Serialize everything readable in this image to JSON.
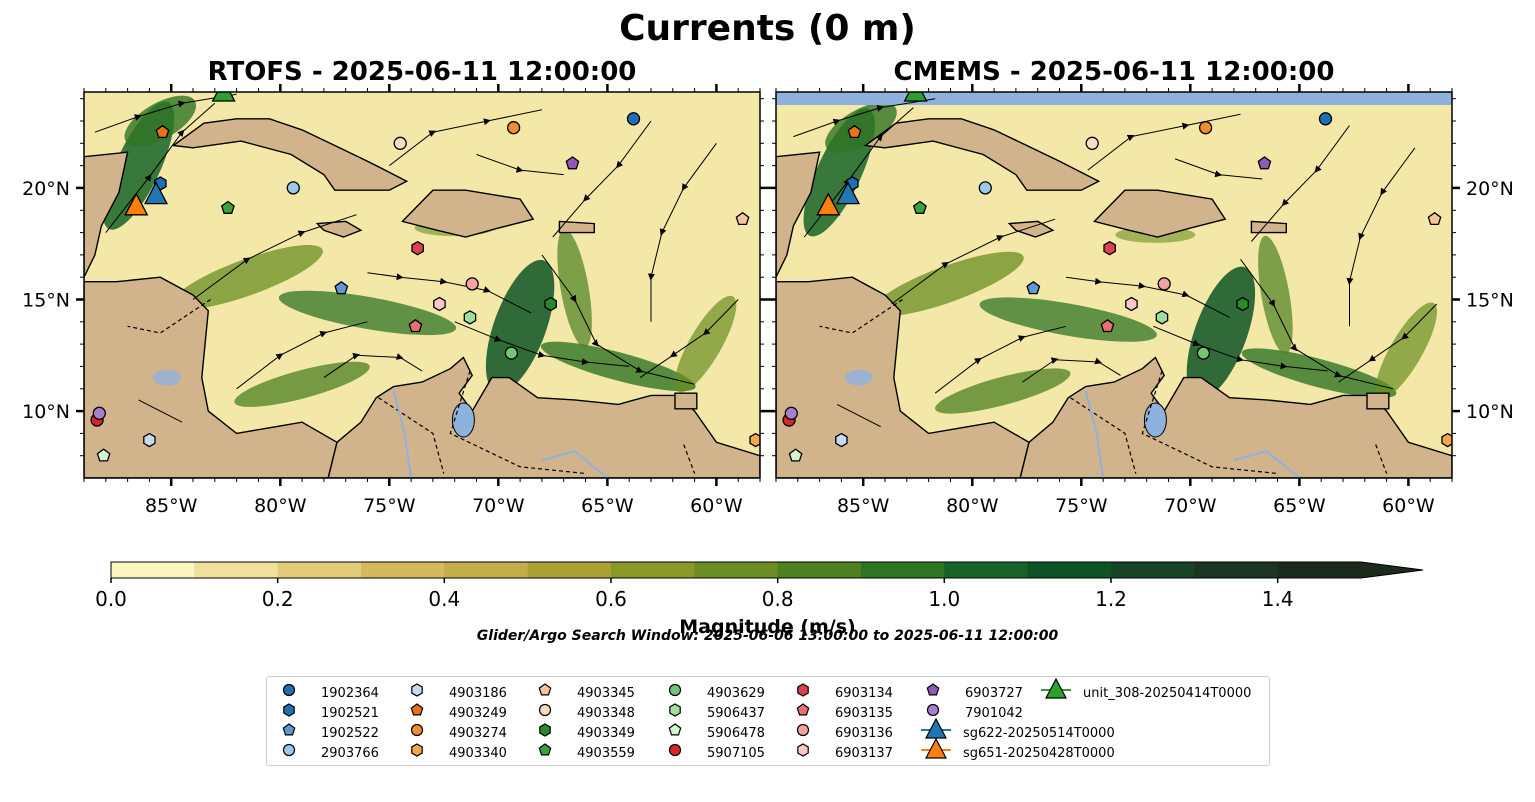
{
  "figure": {
    "title": "Currents (0 m)",
    "panels": [
      {
        "title": "RTOFS - 2025-06-11 12:00:00"
      },
      {
        "title": "CMEMS - 2025-06-11 12:00:00"
      }
    ],
    "colorbar_title": "Magnitude (m/s)",
    "search_window": "Glider/Argo Search Window: 2025-06-06 13:00:00 to 2025-06-11 12:00:00"
  },
  "chart_data": {
    "type": "map",
    "lon_range": [
      -89.0,
      -58.0
    ],
    "lat_range": [
      7.0,
      24.3
    ],
    "lon_ticks": [
      {
        "value": -85,
        "label": "85°W"
      },
      {
        "value": -80,
        "label": "80°W"
      },
      {
        "value": -75,
        "label": "75°W"
      },
      {
        "value": -70,
        "label": "70°W"
      },
      {
        "value": -65,
        "label": "65°W"
      },
      {
        "value": -60,
        "label": "60°W"
      }
    ],
    "lat_ticks": [
      {
        "value": 20,
        "label": "20°N"
      },
      {
        "value": 15,
        "label": "15°N"
      },
      {
        "value": 10,
        "label": "10°N"
      }
    ],
    "colorbar": {
      "vmin": 0.0,
      "vmax": 1.5,
      "extend": "max",
      "ticks": [
        {
          "value": 0.0,
          "label": "0.0"
        },
        {
          "value": 0.2,
          "label": "0.2"
        },
        {
          "value": 0.4,
          "label": "0.4"
        },
        {
          "value": 0.6,
          "label": "0.6"
        },
        {
          "value": 0.8,
          "label": "0.8"
        },
        {
          "value": 1.0,
          "label": "1.0"
        },
        {
          "value": 1.2,
          "label": "1.2"
        },
        {
          "value": 1.4,
          "label": "1.4"
        }
      ],
      "colors": [
        "#fbf6bf",
        "#efe09a",
        "#e2cc78",
        "#d6b95a",
        "#c5ad48",
        "#a9a233",
        "#8a9926",
        "#6a8e21",
        "#4c8021",
        "#2f7424",
        "#166427",
        "#0d5326",
        "#174427",
        "#1c3522",
        "#1b2a1a"
      ]
    },
    "land_color": "#d2b48c",
    "lake_color": "#8fb1de",
    "platforms": [
      {
        "name": "1902364",
        "lon": -63.8,
        "lat": 23.1,
        "marker": "circle",
        "color": "#1f6fb4"
      },
      {
        "name": "1902521",
        "lon": -85.5,
        "lat": 20.2,
        "marker": "hexagon",
        "color": "#1f6fb4"
      },
      {
        "name": "1902522",
        "lon": -77.2,
        "lat": 15.5,
        "marker": "pentagon",
        "color": "#5b9bd5"
      },
      {
        "name": "2903766",
        "lon": -79.4,
        "lat": 20.0,
        "marker": "circle",
        "color": "#9ec8e8"
      },
      {
        "name": "4903186",
        "lon": -86.0,
        "lat": 8.7,
        "marker": "hexagon",
        "color": "#c6dbef"
      },
      {
        "name": "4903249",
        "lon": -85.4,
        "lat": 22.5,
        "marker": "pentagon",
        "color": "#e8711a"
      },
      {
        "name": "4903274",
        "lon": -69.3,
        "lat": 22.7,
        "marker": "circle",
        "color": "#f08c32"
      },
      {
        "name": "4903340",
        "lon": -58.2,
        "lat": 8.7,
        "marker": "hexagon",
        "color": "#f4a64a"
      },
      {
        "name": "4903345",
        "lon": -58.8,
        "lat": 18.6,
        "marker": "pentagon",
        "color": "#f6c49a"
      },
      {
        "name": "4903348",
        "lon": -74.5,
        "lat": 22.0,
        "marker": "circle",
        "color": "#fadcc0"
      },
      {
        "name": "4903349",
        "lon": -67.6,
        "lat": 14.8,
        "marker": "hexagon",
        "color": "#2a8a2a"
      },
      {
        "name": "4903559",
        "lon": -82.4,
        "lat": 19.1,
        "marker": "pentagon",
        "color": "#3aa33a"
      },
      {
        "name": "4903629",
        "lon": -69.4,
        "lat": 12.6,
        "marker": "circle",
        "color": "#74c476"
      },
      {
        "name": "5906437",
        "lon": -71.3,
        "lat": 14.2,
        "marker": "hexagon",
        "color": "#9de09a"
      },
      {
        "name": "5906478",
        "lon": -88.1,
        "lat": 8.0,
        "marker": "pentagon",
        "color": "#d3f5ce"
      },
      {
        "name": "5907105",
        "lon": -88.4,
        "lat": 9.6,
        "marker": "circle",
        "color": "#d62728"
      },
      {
        "name": "6903134",
        "lon": -73.7,
        "lat": 17.3,
        "marker": "hexagon",
        "color": "#d9424e"
      },
      {
        "name": "6903135",
        "lon": -73.8,
        "lat": 13.8,
        "marker": "pentagon",
        "color": "#ec6f6f"
      },
      {
        "name": "6903136",
        "lon": -71.2,
        "lat": 15.7,
        "marker": "circle",
        "color": "#f4a2a2"
      },
      {
        "name": "6903137",
        "lon": -72.7,
        "lat": 14.8,
        "marker": "hexagon",
        "color": "#fbc8c8"
      },
      {
        "name": "6903727",
        "lon": -66.6,
        "lat": 21.1,
        "marker": "pentagon",
        "color": "#8e5ab5"
      },
      {
        "name": "7901042",
        "lon": -88.3,
        "lat": 9.9,
        "marker": "circle",
        "color": "#a77fcf"
      },
      {
        "name": "sg622-20250514T0000",
        "lon": -85.7,
        "lat": 19.7,
        "marker": "triangle",
        "color": "#1f77b4"
      },
      {
        "name": "sg651-20250428T0000",
        "lon": -86.6,
        "lat": 19.2,
        "marker": "triangle",
        "color": "#ff7f0e"
      },
      {
        "name": "unit_308-20250414T0000",
        "lon": -82.6,
        "lat": 24.3,
        "marker": "triangle",
        "color": "#2ca02c"
      }
    ]
  }
}
